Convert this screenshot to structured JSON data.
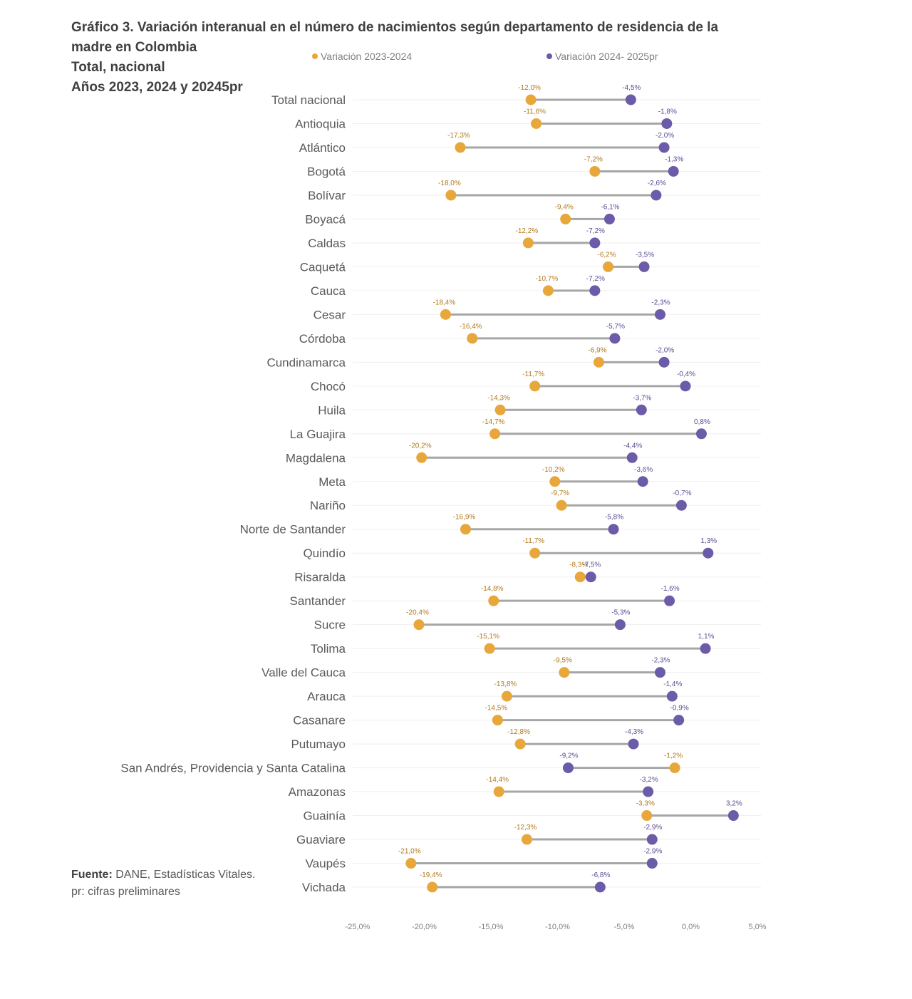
{
  "title": {
    "line1": "Gráfico 3. Variación interanual en el número de nacimientos según departamento de residencia de la",
    "line2": "madre en Colombia",
    "line3": "Total, nacional",
    "line4": "Años 2023, 2024 y 20245pr"
  },
  "source": {
    "label": "Fuente:",
    "text": " DANE, Estadísticas Vitales.",
    "note": "pr: cifras preliminares"
  },
  "colors": {
    "series_2023_2024": "#E8A73A",
    "series_2024_2025": "#6B5BA8",
    "connector": "#A6A6A6",
    "grid": "#EFEFEF"
  },
  "chart_data": {
    "type": "dumbbell",
    "xlim": [
      -25.0,
      5.0
    ],
    "xticks": [
      "-25,0%",
      "-20,0%",
      "-15,0%",
      "-10,0%",
      "-5,0%",
      "0,0%",
      "5,0%"
    ],
    "xtick_values": [
      -25,
      -20,
      -15,
      -10,
      -5,
      0,
      5
    ],
    "legend": [
      "Variación 2023-2024",
      "Variación 2024- 2025pr"
    ],
    "categories": [
      "Total nacional",
      "Antioquia",
      "Atlántico",
      "Bogotá",
      "Bolívar",
      "Boyacá",
      "Caldas",
      "Caquetá",
      "Cauca",
      "Cesar",
      "Córdoba",
      "Cundinamarca",
      "Chocó",
      "Huila",
      "La Guajira",
      "Magdalena",
      "Meta",
      "Nariño",
      "Norte de Santander",
      "Quindío",
      "Risaralda",
      "Santander",
      "Sucre",
      "Tolima",
      "Valle del Cauca",
      "Arauca",
      "Casanare",
      "Putumayo",
      "San Andrés, Providencia y Santa Catalina",
      "Amazonas",
      "Guainía",
      "Guaviare",
      "Vaupés",
      "Vichada"
    ],
    "series": [
      {
        "name": "Variación 2023-2024",
        "values": [
          -12.0,
          -11.6,
          -17.3,
          -7.2,
          -18.0,
          -9.4,
          -12.2,
          -6.2,
          -10.7,
          -18.4,
          -16.4,
          -6.9,
          -11.7,
          -14.3,
          -14.7,
          -20.2,
          -10.2,
          -9.7,
          -16.9,
          -11.7,
          -8.3,
          -14.8,
          -20.4,
          -15.1,
          -9.5,
          -13.8,
          -14.5,
          -12.8,
          -1.2,
          -14.4,
          -3.3,
          -12.3,
          -21.0,
          -19.4
        ],
        "labels": [
          "-12,0%",
          "-11,6%",
          "-17,3%",
          "-7,2%",
          "-18,0%",
          "-9,4%",
          "-12,2%",
          "-6,2%",
          "-10,7%",
          "-18,4%",
          "-16,4%",
          "-6,9%",
          "-11,7%",
          "-14,3%",
          "-14,7%",
          "-20,2%",
          "-10,2%",
          "-9,7%",
          "-16,9%",
          "-11,7%",
          "-8,3%",
          "-14,8%",
          "-20,4%",
          "-15,1%",
          "-9,5%",
          "-13,8%",
          "-14,5%",
          "-12,8%",
          "-1,2%",
          "-14,4%",
          "-3,3%",
          "-12,3%",
          "-21,0%",
          "-19,4%"
        ]
      },
      {
        "name": "Variación 2024- 2025pr",
        "values": [
          -4.5,
          -1.8,
          -2.0,
          -1.3,
          -2.6,
          -6.1,
          -7.2,
          -3.5,
          -7.2,
          -2.3,
          -5.7,
          -2.0,
          -0.4,
          -3.7,
          0.8,
          -4.4,
          -3.6,
          -0.7,
          -5.8,
          1.3,
          -7.5,
          -1.6,
          -5.3,
          1.1,
          -2.3,
          -1.4,
          -0.9,
          -4.3,
          -9.2,
          -3.2,
          3.2,
          -2.9,
          -2.9,
          -6.8
        ],
        "labels": [
          "-4,5%",
          "-1,8%",
          "-2,0%",
          "-1,3%",
          "-2,6%",
          "-6,1%",
          "-7,2%",
          "-3,5%",
          "-7,2%",
          "-2,3%",
          "-5,7%",
          "-2,0%",
          "-0,4%",
          "-3,7%",
          "0,8%",
          "-4,4%",
          "-3,6%",
          "-0,7%",
          "-5,8%",
          "1,3%",
          "-7,5%",
          "-1,6%",
          "-5,3%",
          "1,1%",
          "-2,3%",
          "-1,4%",
          "-0,9%",
          "-4,3%",
          "-9,2%",
          "-3,2%",
          "3,2%",
          "-2,9%",
          "-2,9%",
          "-6,8%"
        ]
      }
    ]
  }
}
